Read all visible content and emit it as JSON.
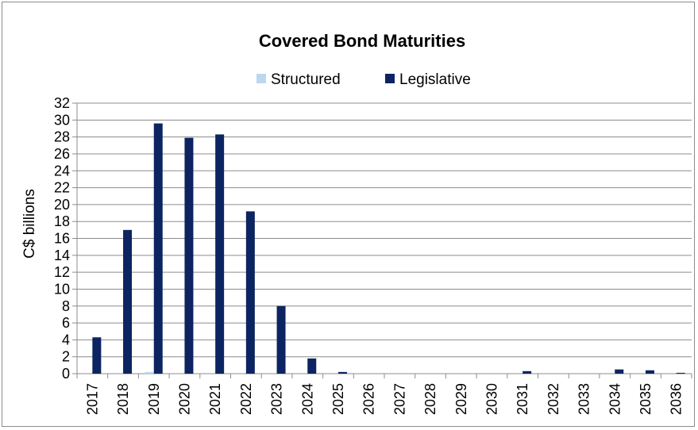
{
  "chart_data": {
    "type": "bar",
    "title": "Covered Bond Maturities",
    "xlabel": "",
    "ylabel": "C$ billions",
    "ylim": [
      0,
      32
    ],
    "ytick_step": 2,
    "grid": true,
    "legend_position": "top",
    "categories": [
      "2017",
      "2018",
      "2019",
      "2020",
      "2021",
      "2022",
      "2023",
      "2024",
      "2025",
      "2026",
      "2027",
      "2028",
      "2029",
      "2030",
      "2031",
      "2032",
      "2033",
      "2034",
      "2035",
      "2036"
    ],
    "series": [
      {
        "name": "Structured",
        "color": "#bdd7ee",
        "values": [
          0,
          0,
          0.2,
          0,
          0,
          0,
          0,
          0,
          0,
          0,
          0,
          0,
          0,
          0,
          0,
          0,
          0,
          0,
          0,
          0
        ]
      },
      {
        "name": "Legislative",
        "color": "#0c2461",
        "values": [
          4.3,
          17.0,
          29.6,
          27.9,
          28.3,
          19.2,
          8.0,
          1.8,
          0.2,
          0,
          0,
          0,
          0,
          0,
          0.3,
          0,
          0,
          0.5,
          0.4,
          0.1
        ]
      }
    ]
  }
}
